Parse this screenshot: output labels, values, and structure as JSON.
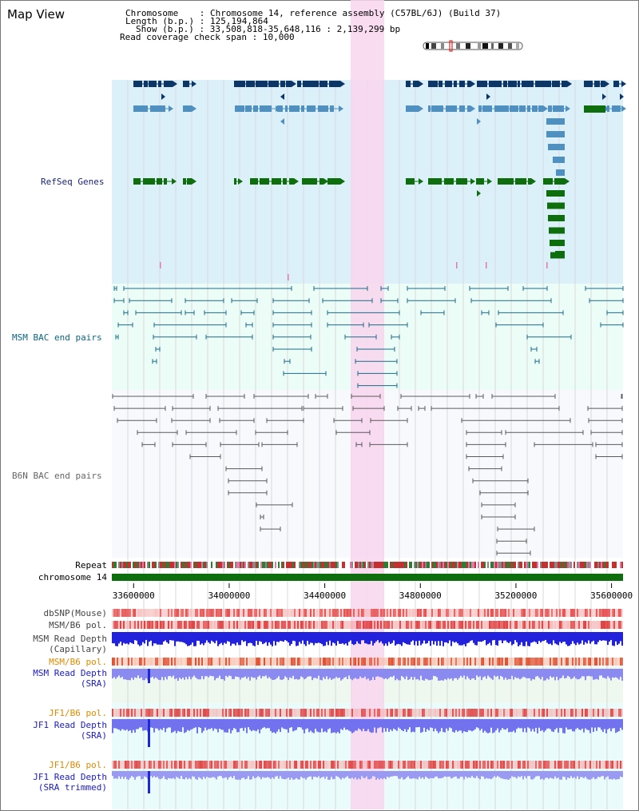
{
  "header": {
    "title": "Map View",
    "chromosome_label": "Chromosome",
    "chromosome_value": "Chromosome 14, reference assembly (C57BL/6J) (Build 37)",
    "length_label": "Length (b.p.)",
    "length_value": "125,194,864",
    "show_label": "Show (b.p.)",
    "show_value": "33,508,818-35,648,116 : 2,139,299 bp",
    "coverage_label": "Read coverage check span",
    "coverage_value": "10,000"
  },
  "tracks": {
    "refseq": "RefSeq Genes",
    "msm_bac": "MSM BAC end pairs",
    "b6n_bac": "B6N BAC end pairs",
    "repeat": "Repeat",
    "chromosome": "chromosome 14",
    "dbsnp": "dbSNP(Mouse)",
    "msm_pol": "MSM/B6 pol.",
    "msm_depth_cap_1": "MSM Read Depth",
    "msm_depth_cap_2": "(Capillary)",
    "msm_pol2": "MSM/B6 pol.",
    "msm_depth_sra_1": "MSM Read Depth",
    "msm_depth_sra_2": "(SRA)",
    "jf1_pol": "JF1/B6 pol.",
    "jf1_depth_sra_1": "JF1 Read Depth",
    "jf1_depth_sra_2": "(SRA)",
    "jf1_pol2": "JF1/B6 pol.",
    "jf1_depth_trim_1": "JF1 Read Depth",
    "jf1_depth_trim_2": "(SRA trimmed)"
  },
  "axis": {
    "ticks": [
      "33600000",
      "34000000",
      "34400000",
      "34800000",
      "35200000",
      "35600000"
    ],
    "range_bp": [
      33508818,
      35648116
    ],
    "highlight_bp": [
      34510000,
      34650000
    ]
  },
  "colors": {
    "refseq_bg": "#dcf0fa",
    "bac_bg": "#ecfdf7",
    "b6n_bg": "#f7f9fc",
    "highlight": "#f9d6ee",
    "navy": "#0d3668",
    "steel": "#4f90c0",
    "green": "#0e6e0e",
    "teal": "#1b6a87",
    "gray": "#666666",
    "label_navy": "#1a237e",
    "label_teal": "#0c6580",
    "label_gray": "#666666",
    "label_orange": "#e08a00",
    "label_blue": "#1a1acc"
  }
}
